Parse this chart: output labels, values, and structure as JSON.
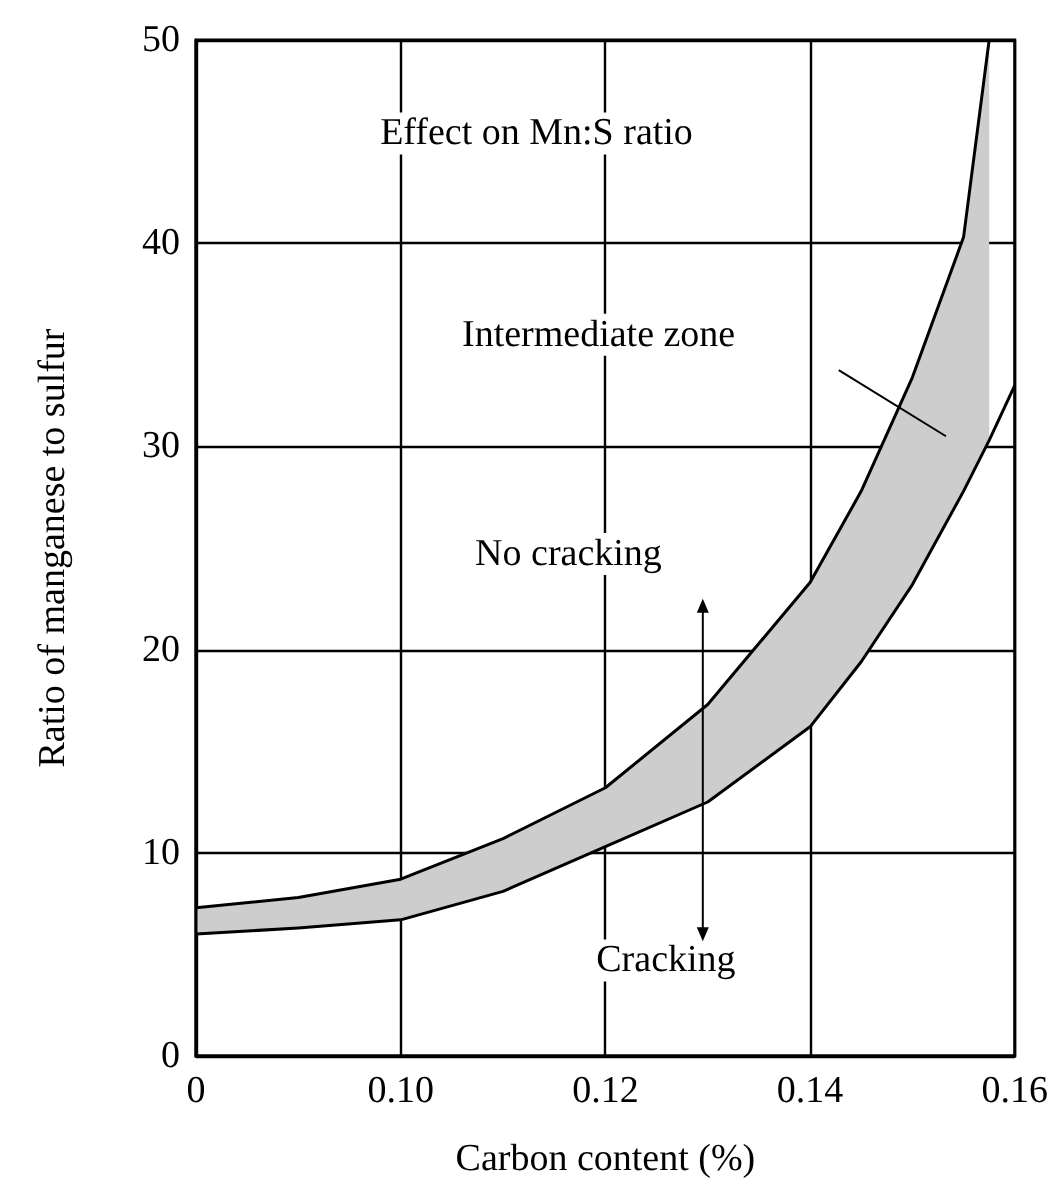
{
  "chart_data": {
    "type": "line",
    "xlabel": "Carbon content (%)",
    "ylabel": "Ratio of manganese to sulfur",
    "x": [
      0.08,
      0.09,
      0.1,
      0.11,
      0.12,
      0.13,
      0.14,
      0.145,
      0.15,
      0.155,
      0.1575,
      0.16
    ],
    "series": [
      {
        "color": "#000000",
        "values": [
          6.0,
          6.3,
          6.7,
          8.1,
          10.3,
          12.5,
          16.2,
          19.4,
          23.2,
          27.8,
          30.3,
          33
        ]
      },
      {
        "color": "#000000",
        "x": [
          0.08,
          0.09,
          0.1,
          0.11,
          0.12,
          0.13,
          0.14,
          0.145,
          0.15,
          0.155,
          0.1575
        ],
        "values": [
          7.3,
          7.8,
          8.7,
          10.7,
          13.2,
          17.3,
          23.3,
          27.8,
          33.4,
          40.3,
          50
        ],
        "lower": [
          6.0,
          6.3,
          6.7,
          8.1,
          10.3,
          12.5,
          16.2,
          19.4,
          23.2,
          27.8,
          30.3
        ],
        "upper": [
          7.3,
          7.8,
          8.7,
          10.7,
          13.2,
          17.3,
          23.3,
          27.8,
          33.4,
          40.3,
          50
        ]
      }
    ],
    "xlim": [
      0.08,
      0.16
    ],
    "xticks": [
      {
        "value": 0.08,
        "label": "0"
      },
      {
        "value": 0.1,
        "label": "0.10"
      },
      {
        "value": 0.12,
        "label": "0.12"
      },
      {
        "value": 0.14,
        "label": "0.14"
      },
      {
        "value": 0.16,
        "label": "0.16"
      }
    ],
    "ylim": [
      0,
      50
    ],
    "yticks": [
      0,
      10,
      20,
      30,
      40,
      50
    ],
    "grid": true,
    "annotations": [
      "Effect on Mn:S ratio",
      "Intermediate zone",
      "No cracking",
      "Cracking"
    ]
  }
}
